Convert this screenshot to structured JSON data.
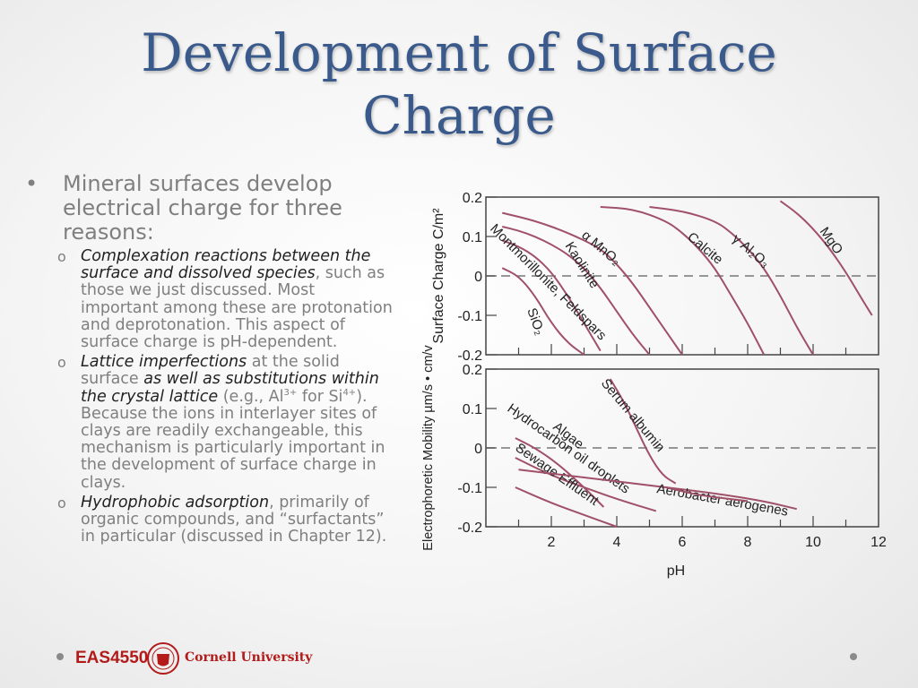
{
  "slide": {
    "title": "Development of Surface Charge",
    "bullet": {
      "marker": "•",
      "text": "Mineral surfaces develop electrical charge for three reasons:"
    },
    "sub_marker": "o",
    "sub_bullets": [
      {
        "em1": "Complexation reactions between the surface and dissolved species",
        "rest": ", such as those we just discussed. Most important among these are protonation and deprotonation. This aspect of surface charge is pH-dependent."
      },
      {
        "em1": "Lattice imperfections",
        "mid1": " at the solid surface ",
        "em2": "as well as substitutions within the crystal lattice",
        "mid2": " (e.g., Al",
        "sup1": "3+",
        "mid3": " for Si",
        "sup2": "4+",
        "rest": "). Because the ions in interlayer sites of clays are readily exchangeable, this mechanism is particularly important in the development of surface charge in clays."
      },
      {
        "em1": "Hydrophobic adsorption",
        "rest": ", primarily of organic compounds, and “surfactants” in particular (discussed in Chapter 12)."
      }
    ]
  },
  "footer": {
    "course": "EAS4550",
    "university": "Cornell University"
  },
  "colors": {
    "title": "#3b5a8c",
    "curve": "#a05068",
    "axis": "#444444",
    "brand_red": "#b31b1b",
    "body_text": "#7f7f7f"
  },
  "chart_data": [
    {
      "type": "line",
      "title": "",
      "xlabel": "",
      "ylabel": "Surface Charge C/m²",
      "xlim": [
        0,
        12
      ],
      "ylim": [
        -0.2,
        0.2
      ],
      "yticks": [
        0.2,
        0.1,
        0,
        -0.1,
        -0.2
      ],
      "yticklabels": [
        "0.2",
        "0.1",
        "0",
        "-0.1",
        "-0.2"
      ],
      "reference_line_y": 0,
      "series": [
        {
          "name": "SiO₂",
          "x": [
            0.5,
            1,
            1.5,
            2,
            2.5,
            3
          ],
          "y": [
            0.02,
            0,
            -0.05,
            -0.12,
            -0.17,
            -0.2
          ]
        },
        {
          "name": "Montmorillonite, Feldspars",
          "x": [
            0.5,
            1,
            1.5,
            2,
            2.5,
            3,
            3.5
          ],
          "y": [
            0.09,
            0.075,
            0.05,
            0.01,
            -0.05,
            -0.12,
            -0.19
          ]
        },
        {
          "name": "Kaolinite",
          "x": [
            0.5,
            1,
            1.5,
            2,
            2.5,
            3,
            3.5,
            4,
            4.5,
            5
          ],
          "y": [
            0.125,
            0.115,
            0.1,
            0.08,
            0.055,
            0.02,
            -0.03,
            -0.09,
            -0.15,
            -0.2
          ]
        },
        {
          "name": "α MnO₂",
          "x": [
            0.5,
            1.5,
            2.5,
            3.5,
            4,
            4.5,
            5,
            5.5,
            6
          ],
          "y": [
            0.16,
            0.14,
            0.11,
            0.07,
            0.03,
            -0.02,
            -0.08,
            -0.14,
            -0.2
          ]
        },
        {
          "name": "Calcite",
          "x": [
            3.5,
            4.5,
            5.5,
            6,
            6.5,
            7,
            7.5,
            8,
            8.5
          ],
          "y": [
            0.175,
            0.17,
            0.14,
            0.11,
            0.07,
            0.02,
            -0.05,
            -0.12,
            -0.2
          ]
        },
        {
          "name": "γ Al₂O₃",
          "x": [
            5,
            6,
            7,
            7.5,
            8,
            8.5,
            9,
            9.5,
            10
          ],
          "y": [
            0.175,
            0.165,
            0.14,
            0.11,
            0.07,
            0.02,
            -0.05,
            -0.13,
            -0.2
          ]
        },
        {
          "name": "MgO",
          "x": [
            9,
            9.5,
            10,
            10.5,
            11,
            11.5,
            11.8
          ],
          "y": [
            0.19,
            0.16,
            0.12,
            0.07,
            0.01,
            -0.06,
            -0.1
          ]
        }
      ]
    },
    {
      "type": "line",
      "title": "",
      "xlabel": "pH",
      "ylabel": "Electrophoretic Mobility µm/s • cm/v",
      "xlim": [
        0,
        12
      ],
      "ylim": [
        -0.2,
        0.2
      ],
      "yticks": [
        0.2,
        0.1,
        0,
        -0.1,
        -0.2
      ],
      "yticklabels": [
        "0.2",
        "0.1",
        "0",
        "-0.1",
        "-0.2"
      ],
      "xticks": [
        2,
        4,
        6,
        8,
        10,
        12
      ],
      "xticklabels": [
        "2",
        "4",
        "6",
        "8",
        "10",
        "12"
      ],
      "reference_line_y": 0,
      "series": [
        {
          "name": "Serum albumin",
          "x": [
            3.8,
            4.2,
            4.6,
            5,
            5.4,
            5.8
          ],
          "y": [
            0.175,
            0.12,
            0.05,
            -0.02,
            -0.07,
            -0.09
          ]
        },
        {
          "name": "Algae",
          "x": [
            0.9,
            1.5,
            2.2,
            3,
            3.6
          ],
          "y": [
            0.025,
            0,
            -0.04,
            -0.1,
            -0.15
          ]
        },
        {
          "name": "Hydrocarbon oil droplets",
          "x": [
            0.9,
            2,
            3,
            4,
            5.2
          ],
          "y": [
            -0.025,
            -0.07,
            -0.1,
            -0.13,
            -0.16
          ]
        },
        {
          "name": "Sewage Effluent",
          "x": [
            0.9,
            2,
            3,
            4
          ],
          "y": [
            -0.1,
            -0.14,
            -0.17,
            -0.2
          ]
        },
        {
          "name": "Aerobacter aerogenes",
          "x": [
            1,
            3,
            5,
            7,
            8.5,
            9.5
          ],
          "y": [
            -0.055,
            -0.075,
            -0.095,
            -0.115,
            -0.135,
            -0.155
          ]
        },
        {
          "name": "",
          "x": [
            5.5,
            6.5,
            7.5,
            8
          ],
          "y": [
            -0.1,
            -0.12,
            -0.13,
            -0.135
          ]
        }
      ]
    }
  ]
}
